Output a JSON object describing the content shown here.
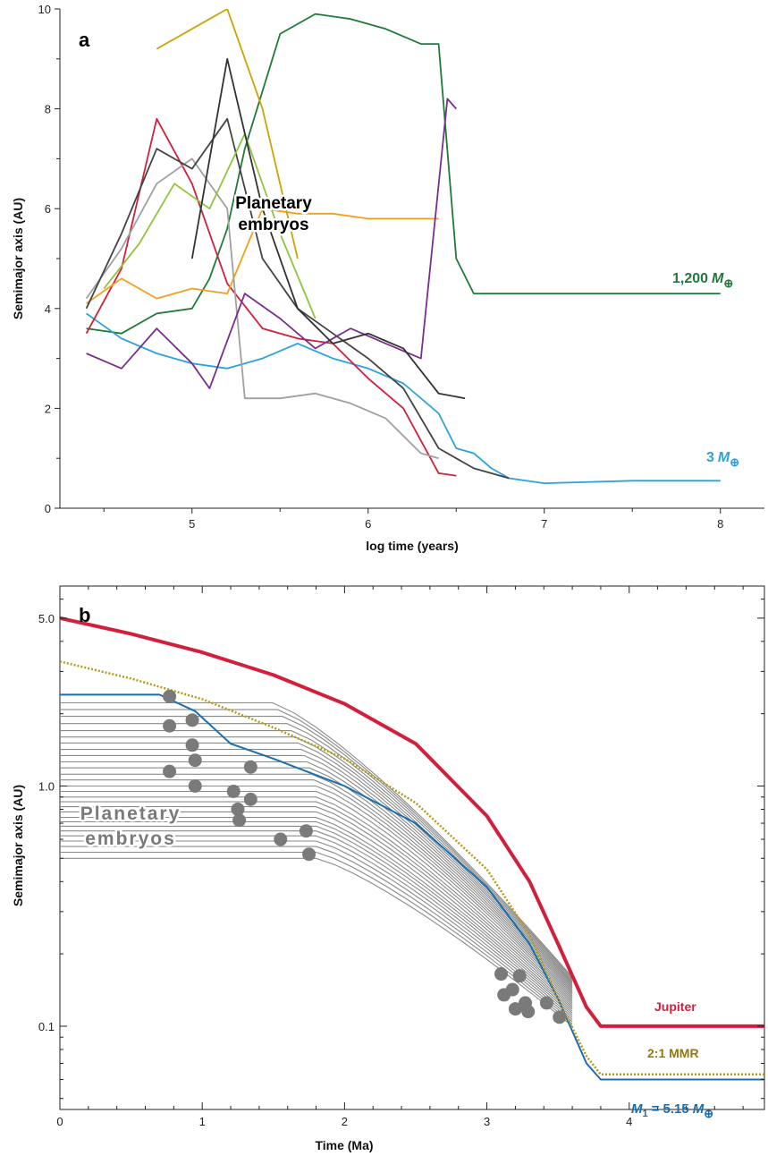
{
  "chart_data": [
    {
      "panel": "a",
      "type": "line",
      "xlabel": "log time (years)",
      "ylabel": "Semimajor axis (AU)",
      "xlim": [
        4.25,
        8.25
      ],
      "ylim": [
        0,
        10
      ],
      "xticks": [
        "5",
        "6",
        "7",
        "8"
      ],
      "yticks": [
        "0",
        "2",
        "4",
        "6",
        "8",
        "10"
      ],
      "annotations": {
        "embryos_line1": "Planetary",
        "embryos_line2": "embryos",
        "giant_mass": "1,200",
        "rocky_mass": "3"
      },
      "series": [
        {
          "color": "#1f7a3a",
          "x": [
            4.4,
            4.6,
            4.8,
            5.0,
            5.1,
            5.2,
            5.3,
            5.5,
            5.7,
            5.9,
            6.1,
            6.3,
            6.4,
            6.5,
            6.6,
            7.0,
            7.5,
            8.0
          ],
          "y": [
            3.6,
            3.5,
            3.9,
            4.0,
            4.6,
            5.6,
            7.2,
            9.5,
            9.9,
            9.8,
            9.6,
            9.3,
            9.3,
            5.0,
            4.3,
            4.3,
            4.3,
            4.3
          ]
        },
        {
          "color": "#29a3dc",
          "x": [
            4.4,
            4.6,
            4.8,
            5.0,
            5.2,
            5.4,
            5.6,
            5.8,
            6.0,
            6.2,
            6.4,
            6.5,
            6.6,
            6.7,
            6.8,
            7.0,
            7.5,
            8.0
          ],
          "y": [
            3.9,
            3.4,
            3.1,
            2.9,
            2.8,
            3.0,
            3.3,
            3.0,
            2.8,
            2.5,
            1.9,
            1.2,
            1.1,
            0.8,
            0.6,
            0.5,
            0.55,
            0.55
          ]
        },
        {
          "color": "#d11f3c",
          "x": [
            4.4,
            4.6,
            4.8,
            5.0,
            5.2,
            5.4,
            5.6,
            5.8,
            6.0,
            6.2,
            6.4,
            6.5
          ],
          "y": [
            3.5,
            4.8,
            7.8,
            6.5,
            4.5,
            3.6,
            3.4,
            3.3,
            2.6,
            2.0,
            0.7,
            0.65
          ]
        },
        {
          "color": "#f2a01c",
          "x": [
            4.4,
            4.6,
            4.8,
            5.0,
            5.2,
            5.4,
            5.6,
            5.8,
            6.0,
            6.2,
            6.4
          ],
          "y": [
            4.1,
            4.6,
            4.2,
            4.4,
            4.3,
            6.0,
            5.9,
            5.9,
            5.8,
            5.8,
            5.8
          ]
        },
        {
          "color": "#a0a0a0",
          "x": [
            4.4,
            4.6,
            4.8,
            5.0,
            5.2,
            5.3,
            5.5,
            5.7,
            5.9,
            6.1,
            6.3,
            6.4
          ],
          "y": [
            4.2,
            5.2,
            6.5,
            7.0,
            6.0,
            2.2,
            2.2,
            2.3,
            2.1,
            1.8,
            1.1,
            1.0
          ]
        },
        {
          "color": "#444444",
          "x": [
            4.4,
            4.6,
            4.8,
            5.0,
            5.2,
            5.4,
            5.6,
            5.8,
            6.0,
            6.2,
            6.4,
            6.6,
            6.8
          ],
          "y": [
            4.0,
            5.5,
            7.2,
            6.8,
            7.8,
            5.0,
            4.0,
            3.5,
            3.0,
            2.4,
            1.2,
            0.8,
            0.6
          ]
        },
        {
          "color": "#7a2e8e",
          "x": [
            4.4,
            4.6,
            4.8,
            5.0,
            5.1,
            5.3,
            5.5,
            5.7,
            5.9,
            6.1,
            6.3,
            6.45,
            6.5
          ],
          "y": [
            3.1,
            2.8,
            3.6,
            2.9,
            2.4,
            4.3,
            3.8,
            3.2,
            3.6,
            3.3,
            3.0,
            8.2,
            8.0
          ]
        },
        {
          "color": "#8fc43f",
          "x": [
            4.5,
            4.7,
            4.9,
            5.1,
            5.3,
            5.5,
            5.7
          ],
          "y": [
            4.4,
            5.3,
            6.5,
            6.0,
            7.5,
            5.5,
            3.8
          ]
        },
        {
          "color": "#c9a500",
          "x": [
            4.8,
            5.0,
            5.2,
            5.4,
            5.6
          ],
          "y": [
            9.2,
            9.6,
            10.0,
            8.0,
            5.0
          ]
        },
        {
          "color": "#333333",
          "x": [
            5.0,
            5.2,
            5.4,
            5.6,
            5.8,
            6.0,
            6.2,
            6.4,
            6.55
          ],
          "y": [
            5.0,
            9.0,
            6.0,
            4.0,
            3.3,
            3.5,
            3.2,
            2.3,
            2.2
          ]
        }
      ]
    },
    {
      "panel": "b",
      "type": "line",
      "xlabel": "Time (Ma)",
      "ylabel": "Semimajor axis (AU)",
      "xlim": [
        0,
        4.95
      ],
      "ylim": [
        0.045,
        6.8
      ],
      "yscale": "log",
      "xticks": [
        "0",
        "1",
        "2",
        "3",
        "4"
      ],
      "yticks": [
        "0.1",
        "1.0",
        "5.0"
      ],
      "annotations": {
        "embryos_line1": "Planetary",
        "embryos_line2": "embryos",
        "jupiter": "Jupiter",
        "mmr": "2:1 MMR",
        "m1_eq": "= 5.15",
        "m1_sub": "1"
      },
      "jupiter": {
        "color": "#d11f3c",
        "x": [
          0,
          0.5,
          1.0,
          1.5,
          2.0,
          2.5,
          3.0,
          3.3,
          3.5,
          3.7,
          3.8,
          4.0,
          4.95
        ],
        "y": [
          5.0,
          4.3,
          3.6,
          2.9,
          2.2,
          1.5,
          0.75,
          0.4,
          0.22,
          0.12,
          0.1,
          0.1,
          0.1
        ]
      },
      "mmr": {
        "color": "#b39a18",
        "x": [
          0,
          0.5,
          1.0,
          1.5,
          2.0,
          2.5,
          3.0,
          3.3,
          3.5,
          3.7,
          3.8,
          4.0,
          4.95
        ],
        "y": [
          3.3,
          2.8,
          2.3,
          1.75,
          1.3,
          0.85,
          0.45,
          0.24,
          0.13,
          0.075,
          0.063,
          0.063,
          0.063
        ]
      },
      "m1": {
        "color": "#1a6fb0",
        "x": [
          0,
          0.7,
          0.95,
          1.2,
          1.5,
          2.0,
          2.5,
          3.0,
          3.3,
          3.5,
          3.7,
          3.8,
          4.0,
          4.95
        ],
        "y": [
          2.4,
          2.4,
          2.05,
          1.5,
          1.3,
          1.0,
          0.7,
          0.38,
          0.22,
          0.13,
          0.07,
          0.06,
          0.06,
          0.06
        ]
      },
      "embryo_tracks": {
        "color": "#8a8a8a",
        "flat_until": 1.8,
        "start_axes": [
          0.5,
          0.53,
          0.56,
          0.59,
          0.62,
          0.65,
          0.68,
          0.71,
          0.74,
          0.78,
          0.82,
          0.86,
          0.9,
          0.95,
          1.0,
          1.06,
          1.12,
          1.19,
          1.26,
          1.34,
          1.42,
          1.51,
          1.6,
          1.7,
          1.82,
          1.95,
          2.08,
          2.22
        ],
        "end_time": 3.6,
        "end_axis_low": 0.1,
        "end_axis_high": 0.16
      },
      "collisions": {
        "color": "#7a7a7a",
        "points": [
          [
            0.77,
            2.36
          ],
          [
            0.77,
            1.78
          ],
          [
            0.77,
            1.15
          ],
          [
            0.93,
            1.88
          ],
          [
            0.93,
            1.48
          ],
          [
            0.95,
            1.28
          ],
          [
            0.95,
            1.0
          ],
          [
            1.22,
            0.95
          ],
          [
            1.25,
            0.8
          ],
          [
            1.26,
            0.72
          ],
          [
            1.34,
            1.2
          ],
          [
            1.34,
            0.88
          ],
          [
            1.55,
            0.6
          ],
          [
            1.73,
            0.65
          ],
          [
            1.75,
            0.52
          ],
          [
            3.1,
            0.165
          ],
          [
            3.12,
            0.135
          ],
          [
            3.18,
            0.142
          ],
          [
            3.2,
            0.118
          ],
          [
            3.23,
            0.162
          ],
          [
            3.27,
            0.125
          ],
          [
            3.29,
            0.115
          ],
          [
            3.42,
            0.125
          ],
          [
            3.51,
            0.109
          ]
        ]
      }
    }
  ]
}
